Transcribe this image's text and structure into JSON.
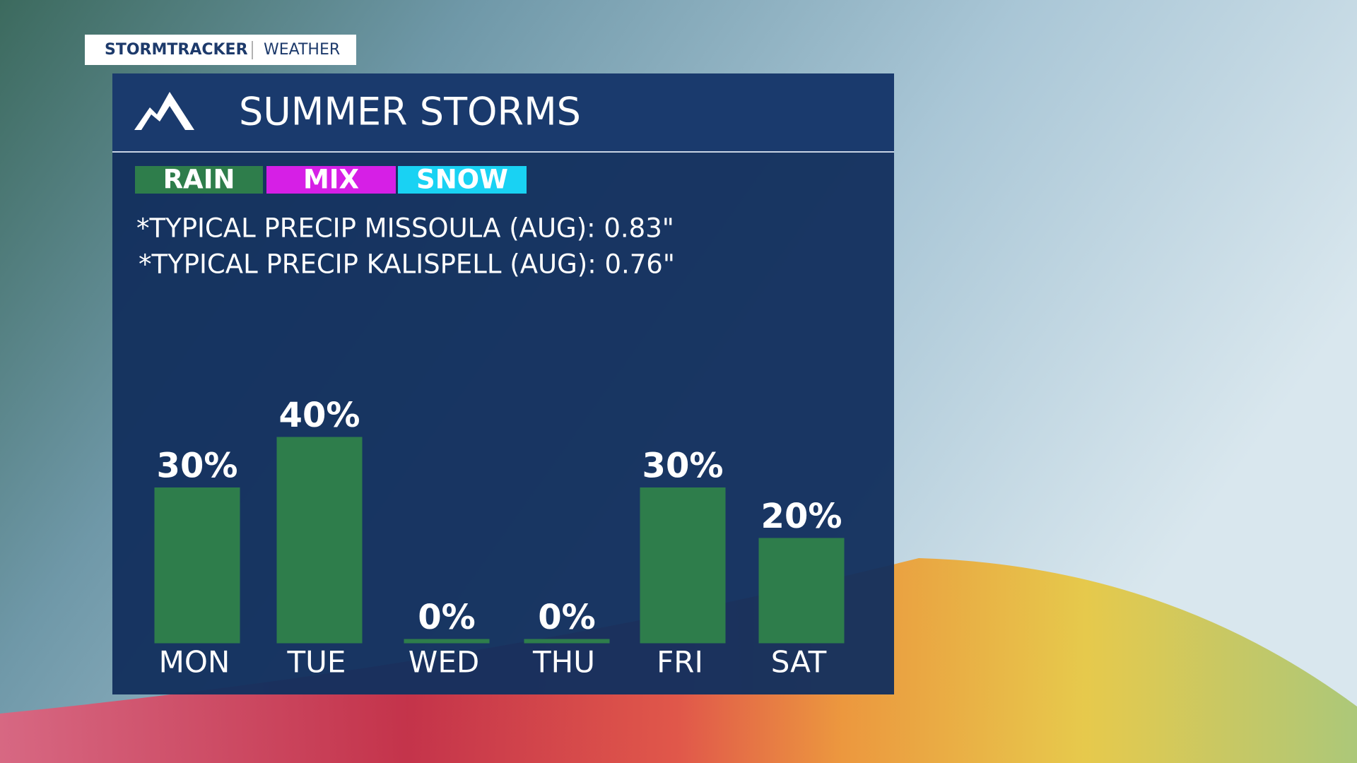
{
  "brand": {
    "name": "STORMTRACKER",
    "section": "WEATHER"
  },
  "chart_data": {
    "type": "bar",
    "title": "SUMMER STORMS",
    "legend": [
      {
        "name": "RAIN",
        "color": "#2e7d4b"
      },
      {
        "name": "MIX",
        "color": "#d61fe6"
      },
      {
        "name": "SNOW",
        "color": "#19d2f3"
      }
    ],
    "notes": [
      "*TYPICAL PRECIP MISSOULA (AUG): 0.83\"",
      "*TYPICAL PRECIP KALISPELL (AUG): 0.76\""
    ],
    "categories": [
      "MON",
      "TUE",
      "WED",
      "THU",
      "FRI",
      "SAT"
    ],
    "values": [
      30,
      40,
      0,
      0,
      30,
      20
    ],
    "value_labels": [
      "30%",
      "40%",
      "0%",
      "0%",
      "30%",
      "20%"
    ],
    "color": "#2e7d4b"
  }
}
